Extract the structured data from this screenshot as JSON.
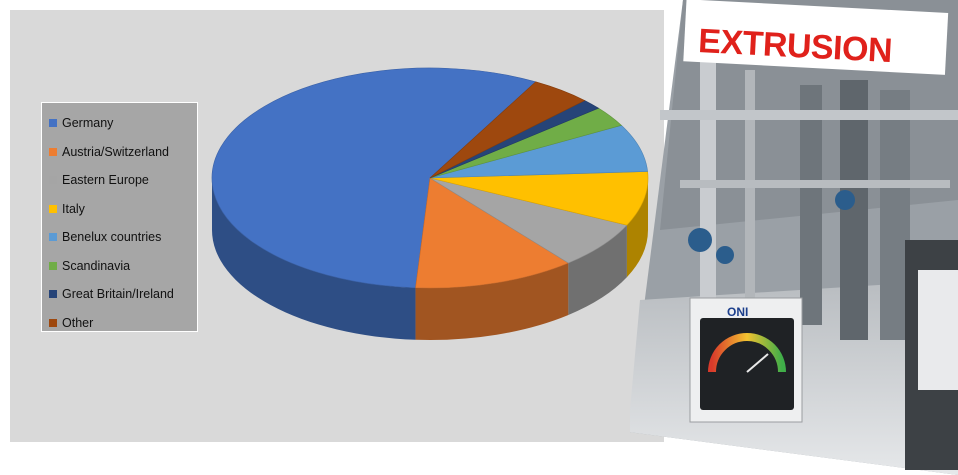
{
  "chart_data": {
    "type": "pie",
    "style": "3d-exploded",
    "title": "",
    "categories": [
      "Germany",
      "Austria/Switzerland",
      "Eastern Europe",
      "Italy",
      "Benelux countries",
      "Scandinavia",
      "Great Britain/Ireland",
      "Other"
    ],
    "values": [
      57,
      12,
      7,
      8,
      7,
      3,
      1.5,
      4.5
    ],
    "colors": [
      "#4472c4",
      "#ed7d31",
      "#a5a5a5",
      "#ffc000",
      "#5b9bd5",
      "#70ad47",
      "#264478",
      "#9e480e"
    ],
    "legend_position": "left"
  },
  "cover": {
    "title": "EXTRUSION",
    "title_color": "#e0211b",
    "gauge_logo": "ONI"
  }
}
